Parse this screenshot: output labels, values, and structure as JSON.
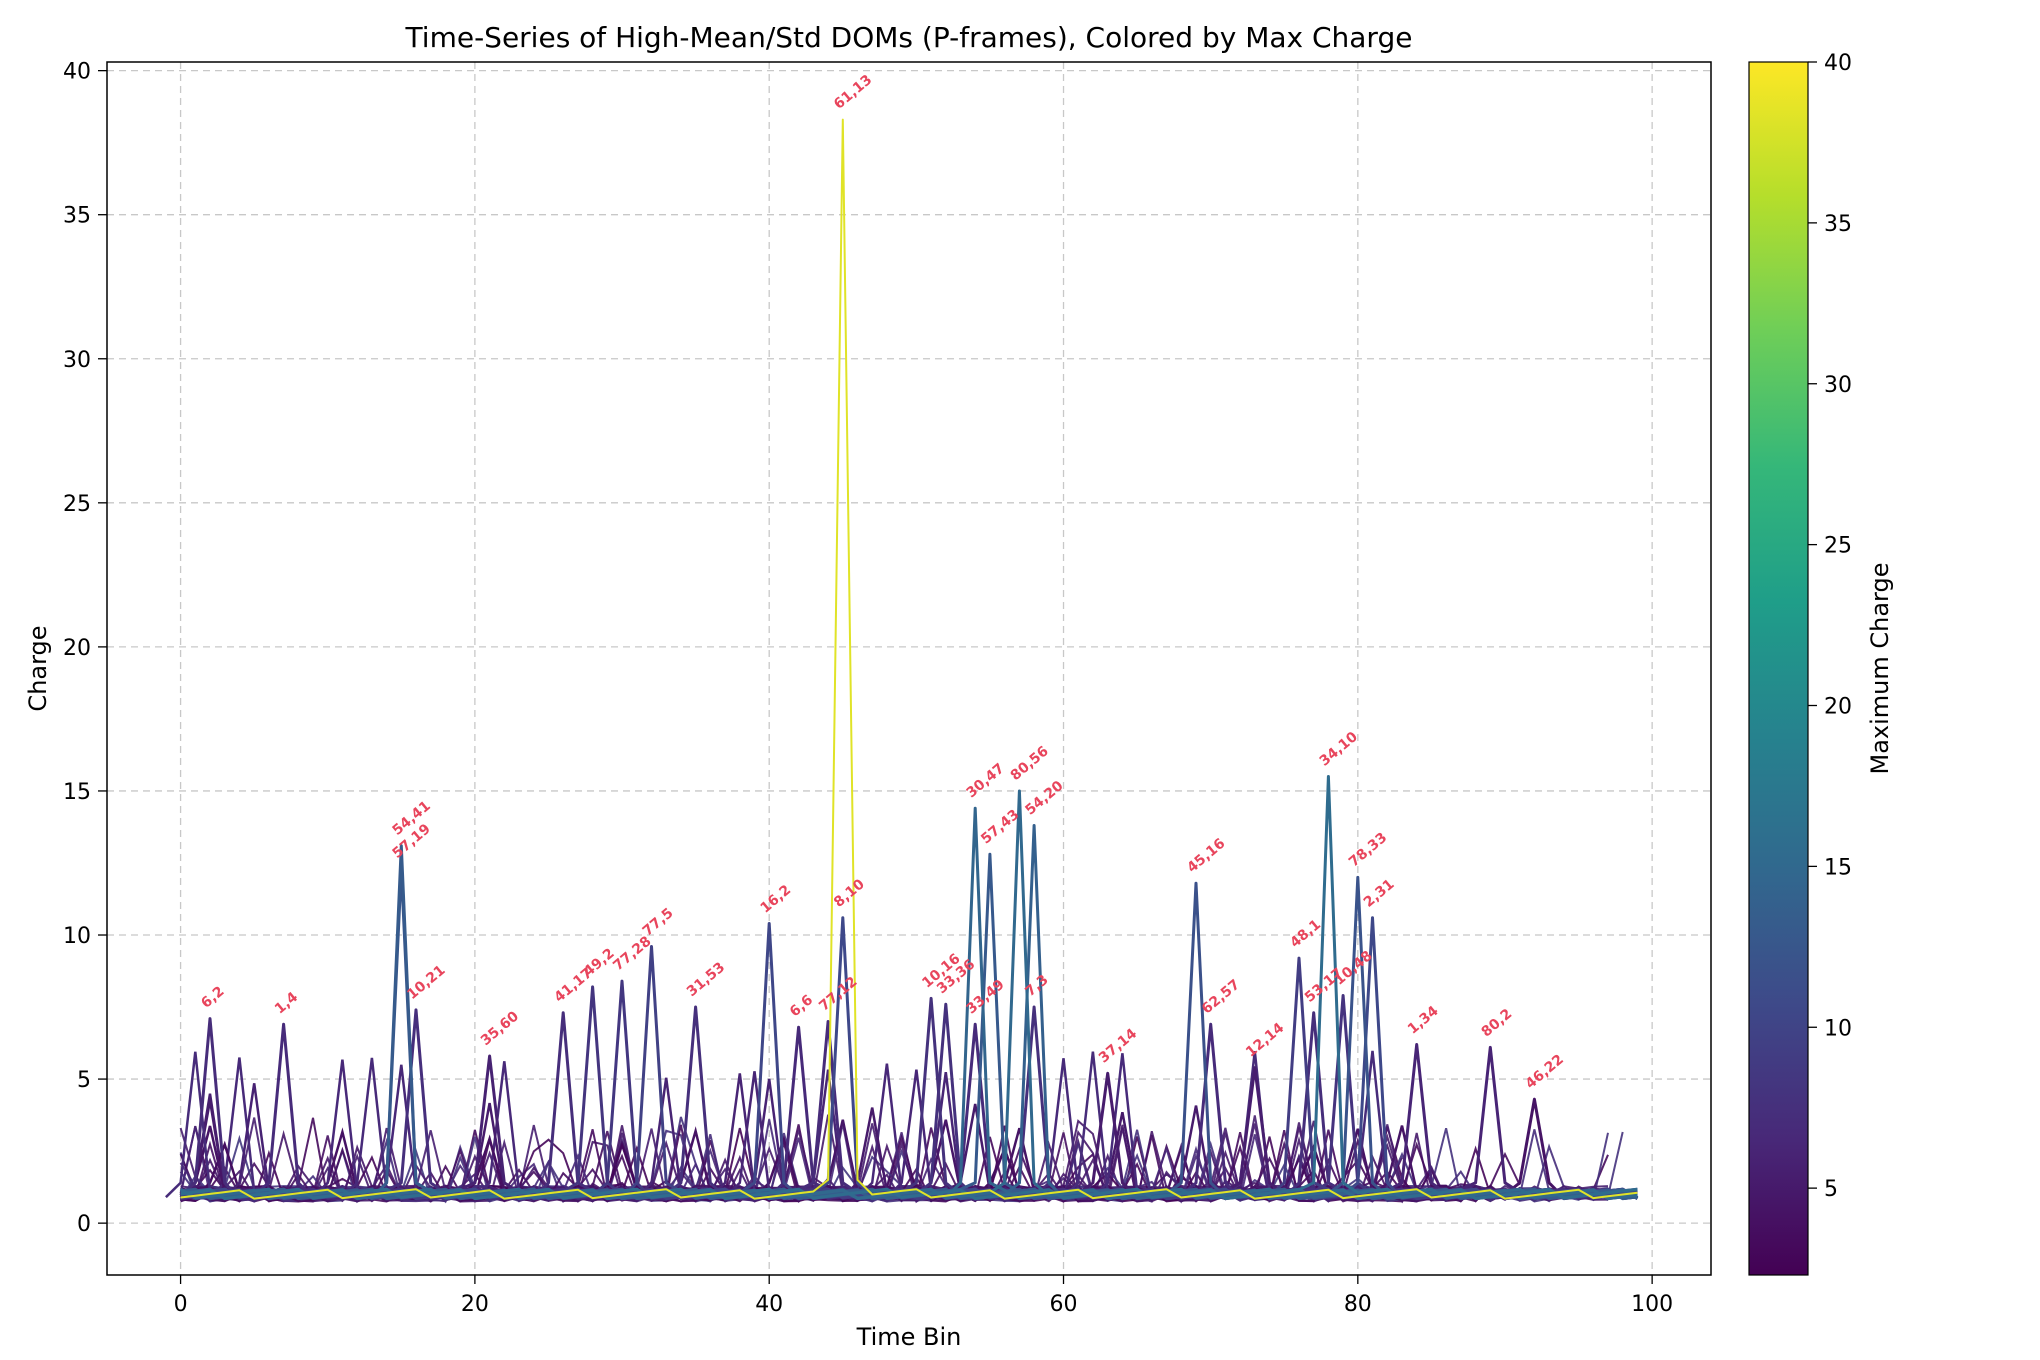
{
  "chart_data": {
    "type": "line",
    "title": "Time-Series of High-Mean/Std DOMs (P-frames), Colored by Max Charge",
    "xlabel": "Time Bin",
    "ylabel": "Charge",
    "xlim": [
      -5,
      104
    ],
    "ylim": [
      -1.8,
      40.3
    ],
    "x_ticks": [
      0,
      20,
      40,
      60,
      80,
      100
    ],
    "y_ticks": [
      0,
      5,
      10,
      15,
      20,
      25,
      30,
      35,
      40
    ],
    "grid": true,
    "colorbar": {
      "label": "Maximum Charge",
      "colormap": "viridis",
      "range": [
        2.3,
        40
      ],
      "ticks": [
        5,
        10,
        15,
        20,
        25,
        30,
        35,
        40
      ]
    },
    "annotation_color": "#e8455c",
    "series": [
      {
        "peak_x": 45,
        "peak_y": 38.3,
        "max_charge": 38.3,
        "label": "61,13",
        "width": 2
      },
      {
        "peak_x": 78,
        "peak_y": 15.5,
        "max_charge": 15.5,
        "label": "34,10",
        "width": 3
      },
      {
        "peak_x": 57,
        "peak_y": 15.0,
        "max_charge": 15.0,
        "label": "80,56",
        "width": 3
      },
      {
        "peak_x": 54,
        "peak_y": 14.4,
        "max_charge": 14.4,
        "label": "30,47",
        "width": 3
      },
      {
        "peak_x": 58,
        "peak_y": 13.8,
        "max_charge": 13.8,
        "label": "54,20",
        "width": 3
      },
      {
        "peak_x": 15,
        "peak_y": 13.1,
        "max_charge": 13.1,
        "label": "54,41",
        "width": 3
      },
      {
        "peak_x": 55,
        "peak_y": 12.8,
        "max_charge": 12.8,
        "label": "57,43",
        "width": 3
      },
      {
        "peak_x": 15,
        "peak_y": 12.3,
        "max_charge": 12.3,
        "label": "57,19",
        "width": 3
      },
      {
        "peak_x": 80,
        "peak_y": 12.0,
        "max_charge": 12.0,
        "label": "78,33",
        "width": 3
      },
      {
        "peak_x": 69,
        "peak_y": 11.8,
        "max_charge": 11.8,
        "label": "45,16",
        "width": 3
      },
      {
        "peak_x": 45,
        "peak_y": 10.6,
        "max_charge": 10.6,
        "label": "8,10",
        "width": 3
      },
      {
        "peak_x": 81,
        "peak_y": 10.6,
        "max_charge": 10.6,
        "label": "2,31",
        "width": 3
      },
      {
        "peak_x": 40,
        "peak_y": 10.4,
        "max_charge": 10.4,
        "label": "16,2",
        "width": 3
      },
      {
        "peak_x": 32,
        "peak_y": 9.6,
        "max_charge": 9.6,
        "label": "77,5",
        "width": 3
      },
      {
        "peak_x": 76,
        "peak_y": 9.2,
        "max_charge": 9.2,
        "label": "48,1",
        "width": 3
      },
      {
        "peak_x": 30,
        "peak_y": 8.4,
        "max_charge": 8.4,
        "label": "77,28",
        "width": 3
      },
      {
        "peak_x": 28,
        "peak_y": 8.2,
        "max_charge": 8.2,
        "label": "49,2",
        "width": 3
      },
      {
        "peak_x": 51,
        "peak_y": 7.8,
        "max_charge": 7.8,
        "label": "10,16",
        "width": 3
      },
      {
        "peak_x": 79,
        "peak_y": 7.9,
        "max_charge": 7.9,
        "label": "10,48",
        "width": 3
      },
      {
        "peak_x": 52,
        "peak_y": 7.6,
        "max_charge": 7.6,
        "label": "33,36",
        "width": 3
      },
      {
        "peak_x": 35,
        "peak_y": 7.5,
        "max_charge": 7.5,
        "label": "31,53",
        "width": 3
      },
      {
        "peak_x": 58,
        "peak_y": 7.5,
        "max_charge": 7.5,
        "label": "7,3",
        "width": 3
      },
      {
        "peak_x": 16,
        "peak_y": 7.4,
        "max_charge": 7.4,
        "label": "10,21",
        "width": 3
      },
      {
        "peak_x": 26,
        "peak_y": 7.3,
        "max_charge": 7.3,
        "label": "41,17",
        "width": 3
      },
      {
        "peak_x": 77,
        "peak_y": 7.3,
        "max_charge": 7.3,
        "label": "53,17",
        "width": 3
      },
      {
        "peak_x": 2,
        "peak_y": 7.1,
        "max_charge": 7.1,
        "label": "6,2",
        "width": 3
      },
      {
        "peak_x": 44,
        "peak_y": 7.0,
        "max_charge": 7.0,
        "label": "77,12",
        "width": 3
      },
      {
        "peak_x": 70,
        "peak_y": 6.9,
        "max_charge": 6.9,
        "label": "62,57",
        "width": 3
      },
      {
        "peak_x": 7,
        "peak_y": 6.9,
        "max_charge": 6.9,
        "label": "1,4",
        "width": 3
      },
      {
        "peak_x": 42,
        "peak_y": 6.8,
        "max_charge": 6.8,
        "label": "6,6",
        "width": 3
      },
      {
        "peak_x": 54,
        "peak_y": 6.9,
        "max_charge": 6.9,
        "label": "33,49",
        "width": 3
      },
      {
        "peak_x": 84,
        "peak_y": 6.2,
        "max_charge": 6.2,
        "label": "1,34",
        "width": 3
      },
      {
        "peak_x": 89,
        "peak_y": 6.1,
        "max_charge": 6.1,
        "label": "80,2",
        "width": 3
      },
      {
        "peak_x": 21,
        "peak_y": 5.8,
        "max_charge": 5.8,
        "label": "35,60",
        "width": 3
      },
      {
        "peak_x": 73,
        "peak_y": 5.4,
        "max_charge": 5.4,
        "label": "12,14",
        "width": 3
      },
      {
        "peak_x": 63,
        "peak_y": 5.2,
        "max_charge": 5.2,
        "label": "37,14",
        "width": 3
      },
      {
        "peak_x": 92,
        "peak_y": 4.3,
        "max_charge": 4.3,
        "label": "46,22",
        "width": 3
      }
    ]
  }
}
